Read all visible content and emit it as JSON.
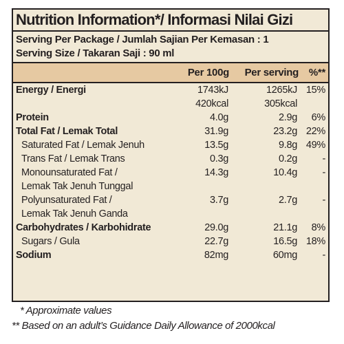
{
  "title": "Nutrition Information*/ Informasi Nilai Gizi",
  "serving": {
    "per_package": "Serving Per Package / Jumlah Sajian Per Kemasan : 1",
    "size": "Serving Size / Takaran Saji : 90 ml"
  },
  "header": {
    "name": "",
    "per_100g": "Per 100g",
    "per_serving": "Per serving",
    "percent": "%**"
  },
  "rows": [
    {
      "name": "Energy / Energi",
      "per_100g": "1743kJ",
      "per_serving": "1265kJ",
      "percent": "15%"
    },
    {
      "name": "",
      "per_100g": "420kcal",
      "per_serving": "305kcal",
      "percent": ""
    },
    {
      "name": "Protein",
      "per_100g": "4.0g",
      "per_serving": "2.9g",
      "percent": "6%"
    },
    {
      "name": "Total Fat / Lemak Total",
      "per_100g": "31.9g",
      "per_serving": "23.2g",
      "percent": "22%"
    },
    {
      "name": "Saturated Fat / Lemak Jenuh",
      "per_100g": "13.5g",
      "per_serving": "9.8g",
      "percent": "49%"
    },
    {
      "name": "Trans Fat / Lemak Trans",
      "per_100g": "0.3g",
      "per_serving": "0.2g",
      "percent": "-"
    },
    {
      "name": "Monounsaturated Fat /",
      "per_100g": "14.3g",
      "per_serving": "10.4g",
      "percent": "-"
    },
    {
      "name": "Lemak Tak Jenuh Tunggal",
      "per_100g": "",
      "per_serving": "",
      "percent": ""
    },
    {
      "name": "Polyunsaturated Fat /",
      "per_100g": "3.7g",
      "per_serving": "2.7g",
      "percent": "-"
    },
    {
      "name": "Lemak Tak Jenuh Ganda",
      "per_100g": "",
      "per_serving": "",
      "percent": ""
    },
    {
      "name": "Carbohydrates / Karbohidrate",
      "per_100g": "29.0g",
      "per_serving": "21.1g",
      "percent": "8%"
    },
    {
      "name": "Sugars / Gula",
      "per_100g": "22.7g",
      "per_serving": "16.5g",
      "percent": "18%"
    },
    {
      "name": "Sodium",
      "per_100g": "82mg",
      "per_serving": "60mg",
      "percent": "-"
    }
  ],
  "footnotes": {
    "approx": "* Approximate values",
    "gda": "** Based on an adult’s Guidance Daily Allowance of 2000kcal"
  },
  "colors": {
    "panel_bg": "#f1e9d6",
    "header_bg": "#e6c9a2",
    "ink": "#231f20"
  }
}
